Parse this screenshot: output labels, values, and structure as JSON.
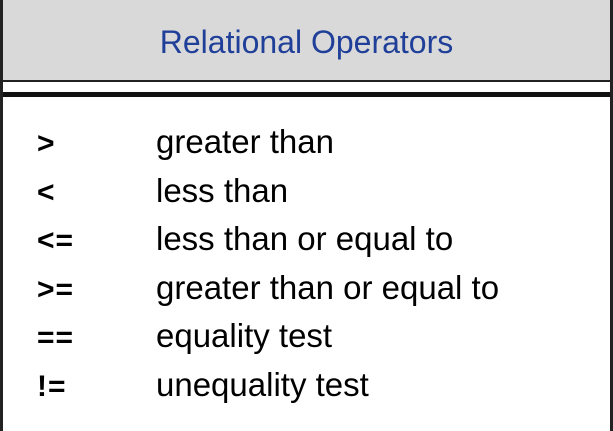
{
  "title": "Relational Operators",
  "operators": [
    {
      "symbol": ">",
      "description": "greater than"
    },
    {
      "symbol": "<",
      "description": "less than"
    },
    {
      "symbol": "<=",
      "description": "less than or equal to"
    },
    {
      "symbol": ">=",
      "description": "greater than or equal to"
    },
    {
      "symbol": "==",
      "description": "equality test"
    },
    {
      "symbol": "!=",
      "description": "unequality test"
    }
  ],
  "colors": {
    "title_text": "#1f3f99",
    "header_background": "#d9d9d9",
    "border": "#222222"
  }
}
